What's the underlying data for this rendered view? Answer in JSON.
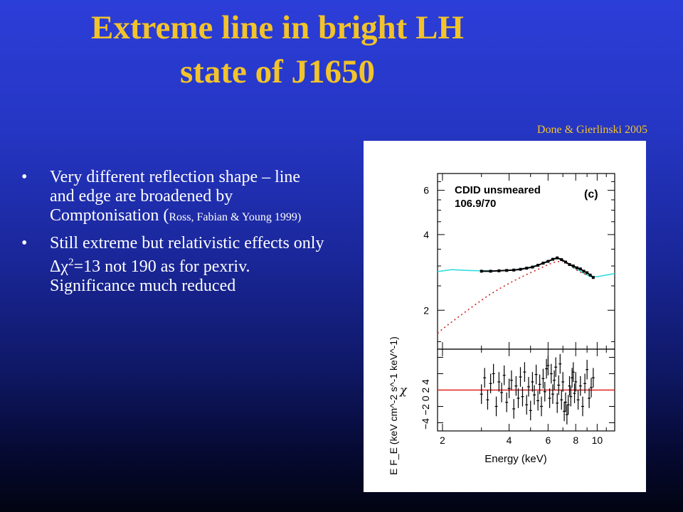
{
  "title": {
    "line1": "Extreme line in bright LH",
    "line2": "state of J1650"
  },
  "credit": "Done & Gierlinski 2005",
  "bullets": [
    {
      "text": "Very different reflection shape – line and edge are broadened by Comptonisation (",
      "small": "Ross, Fabian & Young 1999",
      "close": ")"
    },
    {
      "pre": "Still extreme but relativistic effects only Δχ",
      "sup": "2",
      "post": "=13 not 190 as for pexriv. Significance much reduced"
    }
  ],
  "figure": {
    "panel_label": "(c)",
    "annotation_line1": "CDID unsmeared",
    "annotation_line2": "106.9/70",
    "ylabel_top": "E F_E (keV cm^-2 s^-1 keV^-1)",
    "ylabel_bottom": "χ",
    "xlabel": "Energy (keV)",
    "x_ticks": [
      "2",
      "4",
      "6",
      "8",
      "10"
    ],
    "y_ticks_top": [
      "2",
      "4",
      "6"
    ],
    "y_ticks_bottom": [
      "−4",
      "−2",
      "0",
      "2",
      "4"
    ]
  },
  "chart_data": [
    {
      "type": "line",
      "title": "",
      "xlabel": "Energy (keV)",
      "ylabel": "E F_E (keV cm^-2 s^-1 keV^-1)",
      "xscale": "log",
      "yscale": "log",
      "xlim": [
        1.9,
        12
      ],
      "ylim": [
        1.4,
        7
      ],
      "series": [
        {
          "style": "model-cyan",
          "color": "#33dddd",
          "x": [
            1.9,
            2.2,
            2.6,
            3.0,
            3.5,
            4.0,
            4.5,
            5.0,
            5.5,
            6.0,
            6.3,
            6.6,
            6.9,
            7.2,
            7.5,
            7.8,
            8.2,
            8.6,
            9.0,
            9.4,
            10.0,
            11.0,
            12.0
          ],
          "y": [
            2.85,
            2.9,
            2.88,
            2.87,
            2.87,
            2.88,
            2.92,
            2.97,
            3.04,
            3.12,
            3.18,
            3.22,
            3.2,
            3.12,
            3.04,
            2.96,
            2.9,
            2.82,
            2.76,
            2.72,
            2.72,
            2.76,
            2.8
          ]
        },
        {
          "style": "model-red-dashed",
          "color": "#cc2222",
          "x": [
            1.9,
            2.1,
            2.4,
            2.8,
            3.2,
            3.6,
            4.0,
            4.5,
            5.0,
            5.5,
            6.0,
            6.5,
            7.0,
            7.5,
            8.0,
            8.5,
            9.0
          ],
          "y": [
            1.62,
            1.74,
            1.9,
            2.1,
            2.28,
            2.43,
            2.56,
            2.7,
            2.82,
            2.93,
            3.04,
            3.12,
            3.13,
            3.04,
            2.9,
            2.82,
            2.76
          ]
        },
        {
          "style": "data-black",
          "color": "#000000",
          "x": [
            3.0,
            3.3,
            3.6,
            3.9,
            4.2,
            4.5,
            4.8,
            5.1,
            5.4,
            5.7,
            6.0,
            6.3,
            6.6,
            6.9,
            7.2,
            7.5,
            7.8,
            8.1,
            8.4,
            8.7,
            9.0,
            9.3,
            9.6
          ],
          "y": [
            2.86,
            2.86,
            2.87,
            2.88,
            2.89,
            2.91,
            2.94,
            2.97,
            3.02,
            3.08,
            3.13,
            3.19,
            3.23,
            3.18,
            3.11,
            3.04,
            3.0,
            2.95,
            2.92,
            2.86,
            2.82,
            2.76,
            2.7
          ]
        }
      ]
    },
    {
      "type": "scatter",
      "title": "",
      "xlabel": "Energy (keV)",
      "ylabel": "χ",
      "xscale": "log",
      "xlim": [
        1.9,
        12
      ],
      "ylim": [
        -5,
        5
      ],
      "zero_line_color": "#e02020",
      "series": [
        {
          "x": [
            3.0,
            3.1,
            3.2,
            3.3,
            3.4,
            3.5,
            3.6,
            3.7,
            3.8,
            3.9,
            4.0,
            4.1,
            4.2,
            4.3,
            4.4,
            4.5,
            4.6,
            4.7,
            4.8,
            4.9,
            5.0,
            5.1,
            5.2,
            5.3,
            5.4,
            5.5,
            5.6,
            5.7,
            5.8,
            5.9,
            6.0,
            6.1,
            6.2,
            6.3,
            6.4,
            6.5,
            6.6,
            6.7,
            6.8,
            6.9,
            7.0,
            7.1,
            7.2,
            7.3,
            7.4,
            7.5,
            7.6,
            7.7,
            7.8,
            7.9,
            8.0,
            8.2,
            8.4,
            8.6,
            8.8,
            9.0,
            9.2,
            9.4,
            9.6
          ],
          "y": [
            -0.5,
            1.5,
            -1.2,
            0.8,
            2.0,
            -2.0,
            1.0,
            -0.3,
            1.8,
            -1.5,
            0.2,
            1.2,
            -2.3,
            0.5,
            -1.0,
            1.6,
            -0.8,
            2.2,
            -1.8,
            0.4,
            -2.5,
            1.0,
            -0.6,
            1.9,
            -1.3,
            0.7,
            -2.0,
            1.4,
            -0.2,
            2.6,
            3.0,
            -1.0,
            2.0,
            -0.5,
            1.2,
            2.8,
            -1.6,
            0.6,
            3.2,
            -1.2,
            1.0,
            -2.6,
            -1.5,
            -3.0,
            -1.8,
            0.5,
            -0.8,
            1.5,
            2.2,
            -0.4,
            1.0,
            -1.2,
            0.5,
            -2.0,
            0.8,
            2.5,
            -1.0,
            0.3,
            1.5
          ],
          "err": 1.2
        }
      ]
    }
  ]
}
